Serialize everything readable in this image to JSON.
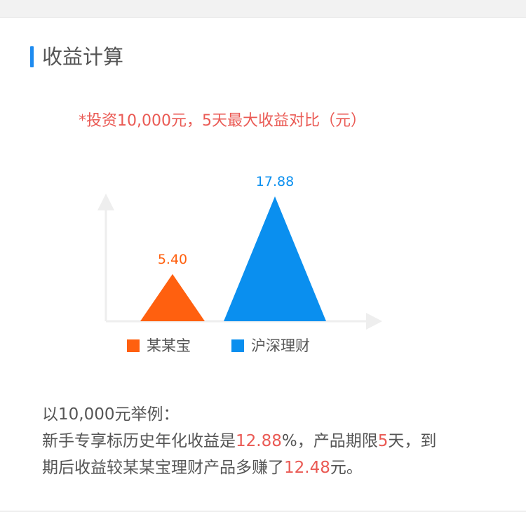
{
  "section": {
    "title": "收益计算"
  },
  "chart_data": {
    "type": "bar",
    "title": "*投资10,000元，5天最大收益对比（元）",
    "categories": [
      "某某宝",
      "沪深理财"
    ],
    "values": [
      5.4,
      17.88
    ],
    "value_labels": [
      "5.40",
      "17.88"
    ],
    "colors": [
      "#ff600f",
      "#0a8fef"
    ],
    "legend": [
      {
        "label": "某某宝",
        "color": "#ff600f"
      },
      {
        "label": "沪深理财",
        "color": "#0a8fef"
      }
    ],
    "ylim": [
      0,
      20
    ],
    "xlabel": "",
    "ylabel": "",
    "grid": false,
    "mark_shape": "triangle",
    "legend_position": "bottom"
  },
  "description": {
    "line1": "以10,000元举例：",
    "line2": {
      "part1": "新手专享标历史年化收益是",
      "rate": "12.88",
      "part2": "%，产品期限",
      "days": "5",
      "part3": "天，到"
    },
    "line3": {
      "part1": "期后收益较某某宝理财产品多赚了",
      "amount": "12.48",
      "part2": "元。"
    }
  }
}
